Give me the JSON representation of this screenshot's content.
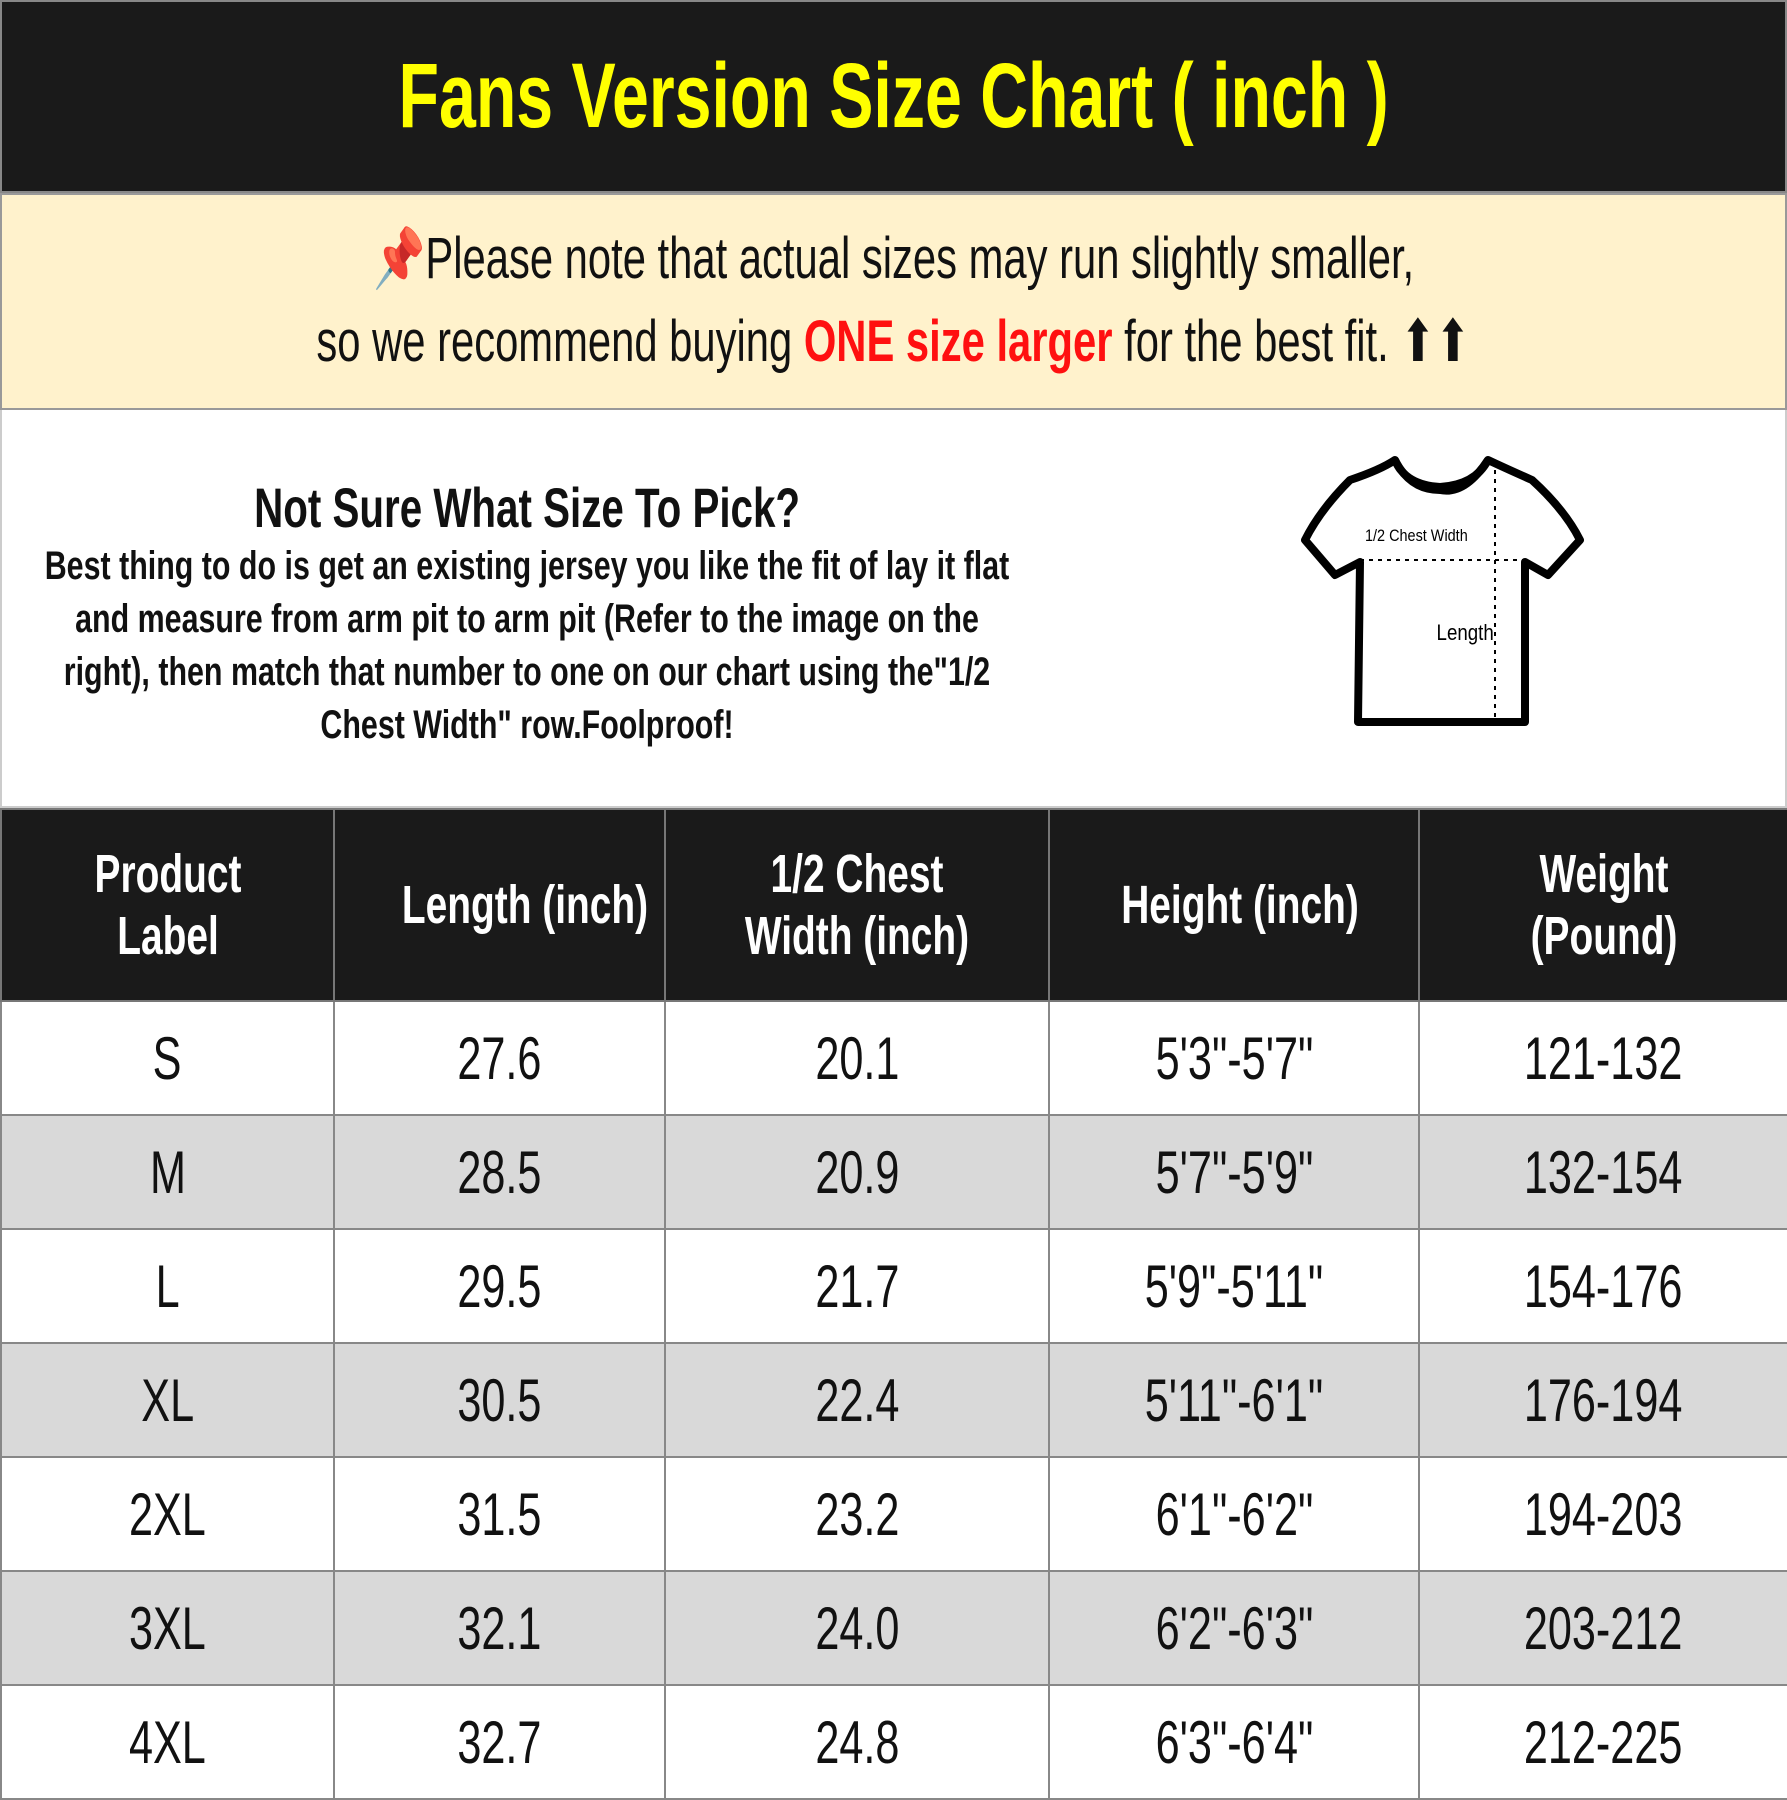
{
  "title": "Fans Version Size Chart ( inch )",
  "notice": {
    "line1": "Please note that actual sizes may run slightly smaller,",
    "line2_pre": "so we recommend buying ",
    "line2_em": "ONE size larger",
    "line2_post": " for the best fit. ⬆⬆",
    "icon": "pushpin-icon"
  },
  "info": {
    "heading": "Not Sure What Size To Pick?",
    "body": "Best thing to do is get an existing jersey you like the fit of lay it flat and measure from arm pit to arm pit (Refer to the image on the right), then match that number to one on our chart using the\"1/2 Chest Width\" row.Foolproof!",
    "shirt_chest_label": "1/2 Chest Width",
    "shirt_length_label": "Length"
  },
  "table": {
    "headers": [
      "Product Label",
      "Length (inch)",
      "1/2 Chest Width (inch)",
      "Height (inch)",
      "Weight (Pound)"
    ],
    "rows": [
      [
        "S",
        "27.6",
        "20.1",
        "5'3\"-5'7\"",
        "121-132"
      ],
      [
        "M",
        "28.5",
        "20.9",
        "5'7\"-5'9\"",
        "132-154"
      ],
      [
        "L",
        "29.5",
        "21.7",
        "5'9\"-5'11\"",
        "154-176"
      ],
      [
        "XL",
        "30.5",
        "22.4",
        "5'11\"-6'1\"",
        "176-194"
      ],
      [
        "2XL",
        "31.5",
        "23.2",
        "6'1\"-6'2\"",
        "194-203"
      ],
      [
        "3XL",
        "32.1",
        "24.0",
        "6'2\"-6'3\"",
        "203-212"
      ],
      [
        "4XL",
        "32.7",
        "24.8",
        "6'3\"-6'4\"",
        "212-225"
      ]
    ]
  },
  "colors": {
    "title": "#ffff00",
    "banner": "#1a1a1a",
    "notice_bg": "#fff2cc",
    "emphasis": "#ff1010",
    "alt_row": "#d9d9d9"
  }
}
